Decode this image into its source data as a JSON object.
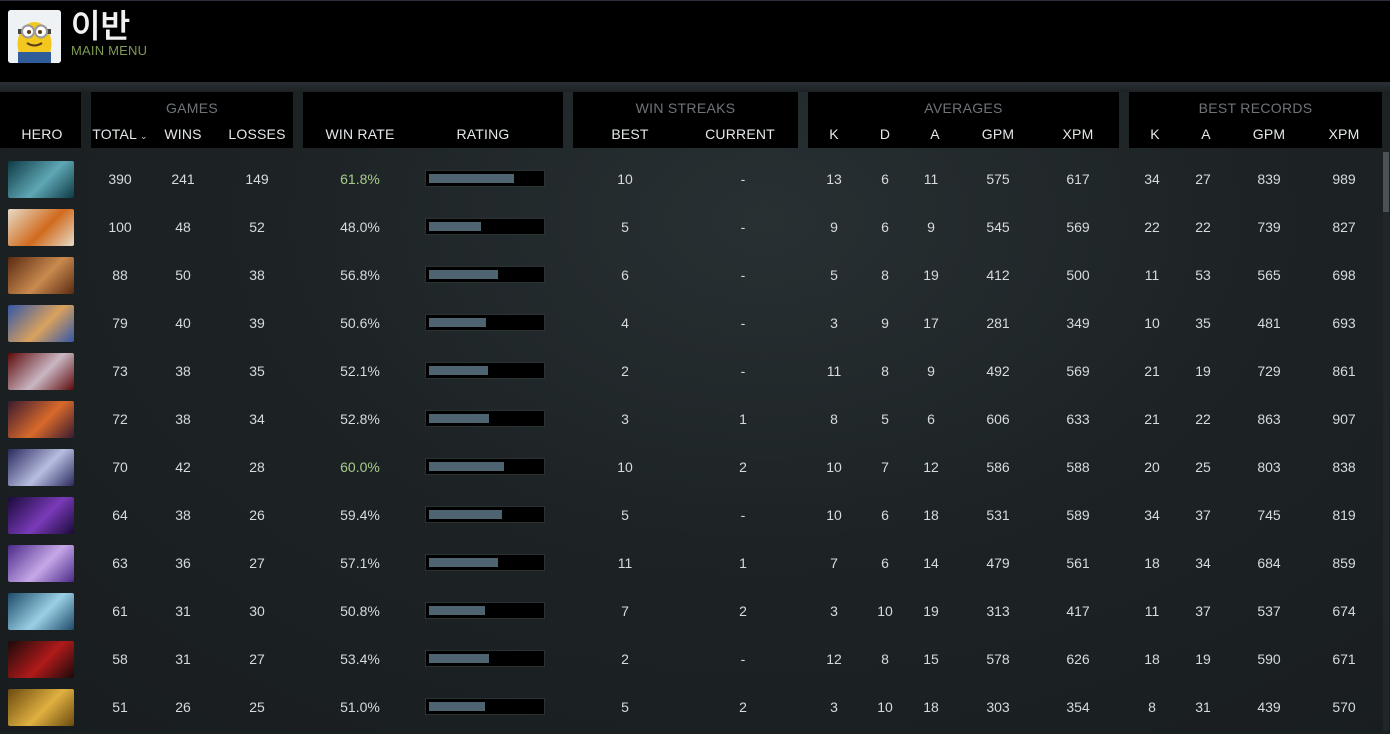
{
  "profile": {
    "name": "이반",
    "menu_label": "MAIN MENU"
  },
  "columns": {
    "hero": "HERO",
    "games_group": "GAMES",
    "total": "TOTAL",
    "wins": "WINS",
    "losses": "LOSSES",
    "win_rate": "WIN RATE",
    "rating": "RATING",
    "streaks_group": "WIN STREAKS",
    "best": "BEST",
    "current": "CURRENT",
    "averages_group": "AVERAGES",
    "avg_k": "K",
    "avg_d": "D",
    "avg_a": "A",
    "avg_gpm": "GPM",
    "avg_xpm": "XPM",
    "records_group": "BEST RECORDS",
    "rec_k": "K",
    "rec_a": "A",
    "rec_gpm": "GPM",
    "rec_xpm": "XPM"
  },
  "colors": {
    "high_win_rate": "#a7cc8a",
    "rating_fill": "#4e6571",
    "menu_accent": "#7d9a55"
  },
  "heroes": [
    {
      "total": "390",
      "wins": "241",
      "losses": "149",
      "win_rate": "61.8%",
      "rating": 0.76,
      "high": true,
      "best": "10",
      "current": "-",
      "k": "13",
      "d": "6",
      "a": "11",
      "gpm": "575",
      "xpm": "617",
      "rk": "34",
      "ra": "27",
      "rgpm": "839",
      "rxpm": "989",
      "icon": "hero-portrait-teal",
      "c1": "#0e3b45",
      "c2": "#5fa7b5"
    },
    {
      "total": "100",
      "wins": "48",
      "losses": "52",
      "win_rate": "48.0%",
      "rating": 0.46,
      "high": false,
      "best": "5",
      "current": "-",
      "k": "9",
      "d": "6",
      "a": "9",
      "gpm": "545",
      "xpm": "569",
      "rk": "22",
      "ra": "22",
      "rgpm": "739",
      "rxpm": "827",
      "icon": "hero-portrait-orange",
      "c1": "#e7dcc8",
      "c2": "#d06a1e"
    },
    {
      "total": "88",
      "wins": "50",
      "losses": "38",
      "win_rate": "56.8%",
      "rating": 0.62,
      "high": false,
      "best": "6",
      "current": "-",
      "k": "5",
      "d": "8",
      "a": "19",
      "gpm": "412",
      "xpm": "500",
      "rk": "11",
      "ra": "53",
      "rgpm": "565",
      "rxpm": "698",
      "icon": "hero-portrait-brown",
      "c1": "#5a2a12",
      "c2": "#c98a4e"
    },
    {
      "total": "79",
      "wins": "40",
      "losses": "39",
      "win_rate": "50.6%",
      "rating": 0.51,
      "high": false,
      "best": "4",
      "current": "-",
      "k": "3",
      "d": "9",
      "a": "17",
      "gpm": "281",
      "xpm": "349",
      "rk": "10",
      "ra": "35",
      "rgpm": "481",
      "rxpm": "693",
      "icon": "hero-portrait-blue",
      "c1": "#3456a8",
      "c2": "#d9a25d"
    },
    {
      "total": "73",
      "wins": "38",
      "losses": "35",
      "win_rate": "52.1%",
      "rating": 0.53,
      "high": false,
      "best": "2",
      "current": "-",
      "k": "11",
      "d": "8",
      "a": "9",
      "gpm": "492",
      "xpm": "569",
      "rk": "21",
      "ra": "19",
      "rgpm": "729",
      "rxpm": "861",
      "icon": "hero-portrait-red",
      "c1": "#5e0a0a",
      "c2": "#c9b7c4"
    },
    {
      "total": "72",
      "wins": "38",
      "losses": "34",
      "win_rate": "52.8%",
      "rating": 0.54,
      "high": false,
      "best": "3",
      "current": "1",
      "k": "8",
      "d": "5",
      "a": "6",
      "gpm": "606",
      "xpm": "633",
      "rk": "21",
      "ra": "22",
      "rgpm": "863",
      "rxpm": "907",
      "icon": "hero-portrait-amber",
      "c1": "#3a1a30",
      "c2": "#d86a2a"
    },
    {
      "total": "70",
      "wins": "42",
      "losses": "28",
      "win_rate": "60.0%",
      "rating": 0.67,
      "high": true,
      "best": "10",
      "current": "2",
      "k": "10",
      "d": "7",
      "a": "12",
      "gpm": "586",
      "xpm": "588",
      "rk": "20",
      "ra": "25",
      "rgpm": "803",
      "rxpm": "838",
      "icon": "hero-portrait-violet",
      "c1": "#2a2a5e",
      "c2": "#b7bde0"
    },
    {
      "total": "64",
      "wins": "38",
      "losses": "26",
      "win_rate": "59.4%",
      "rating": 0.65,
      "high": false,
      "best": "5",
      "current": "-",
      "k": "10",
      "d": "6",
      "a": "18",
      "gpm": "531",
      "xpm": "589",
      "rk": "34",
      "ra": "37",
      "rgpm": "745",
      "rxpm": "819",
      "icon": "hero-portrait-purple",
      "c1": "#1a0a3a",
      "c2": "#7a3ab8"
    },
    {
      "total": "63",
      "wins": "36",
      "losses": "27",
      "win_rate": "57.1%",
      "rating": 0.62,
      "high": false,
      "best": "11",
      "current": "1",
      "k": "7",
      "d": "6",
      "a": "14",
      "gpm": "479",
      "xpm": "561",
      "rk": "18",
      "ra": "34",
      "rgpm": "684",
      "rxpm": "859",
      "icon": "hero-portrait-lavender",
      "c1": "#4a2a88",
      "c2": "#c6a8e8"
    },
    {
      "total": "61",
      "wins": "31",
      "losses": "30",
      "win_rate": "50.8%",
      "rating": 0.5,
      "high": false,
      "best": "7",
      "current": "2",
      "k": "3",
      "d": "10",
      "a": "19",
      "gpm": "313",
      "xpm": "417",
      "rk": "11",
      "ra": "37",
      "rgpm": "537",
      "rxpm": "674",
      "icon": "hero-portrait-cyan",
      "c1": "#1e4a6a",
      "c2": "#9ad0e6"
    },
    {
      "total": "58",
      "wins": "31",
      "losses": "27",
      "win_rate": "53.4%",
      "rating": 0.54,
      "high": false,
      "best": "2",
      "current": "-",
      "k": "12",
      "d": "8",
      "a": "15",
      "gpm": "578",
      "xpm": "626",
      "rk": "18",
      "ra": "19",
      "rgpm": "590",
      "rxpm": "671",
      "icon": "hero-portrait-crimson",
      "c1": "#1a0a0a",
      "c2": "#b01a1a"
    },
    {
      "total": "51",
      "wins": "26",
      "losses": "25",
      "win_rate": "51.0%",
      "rating": 0.5,
      "high": false,
      "best": "5",
      "current": "2",
      "k": "3",
      "d": "10",
      "a": "18",
      "gpm": "303",
      "xpm": "354",
      "rk": "8",
      "ra": "31",
      "rgpm": "439",
      "rxpm": "570",
      "icon": "hero-portrait-gold",
      "c1": "#6a4a10",
      "c2": "#e0b040"
    }
  ]
}
